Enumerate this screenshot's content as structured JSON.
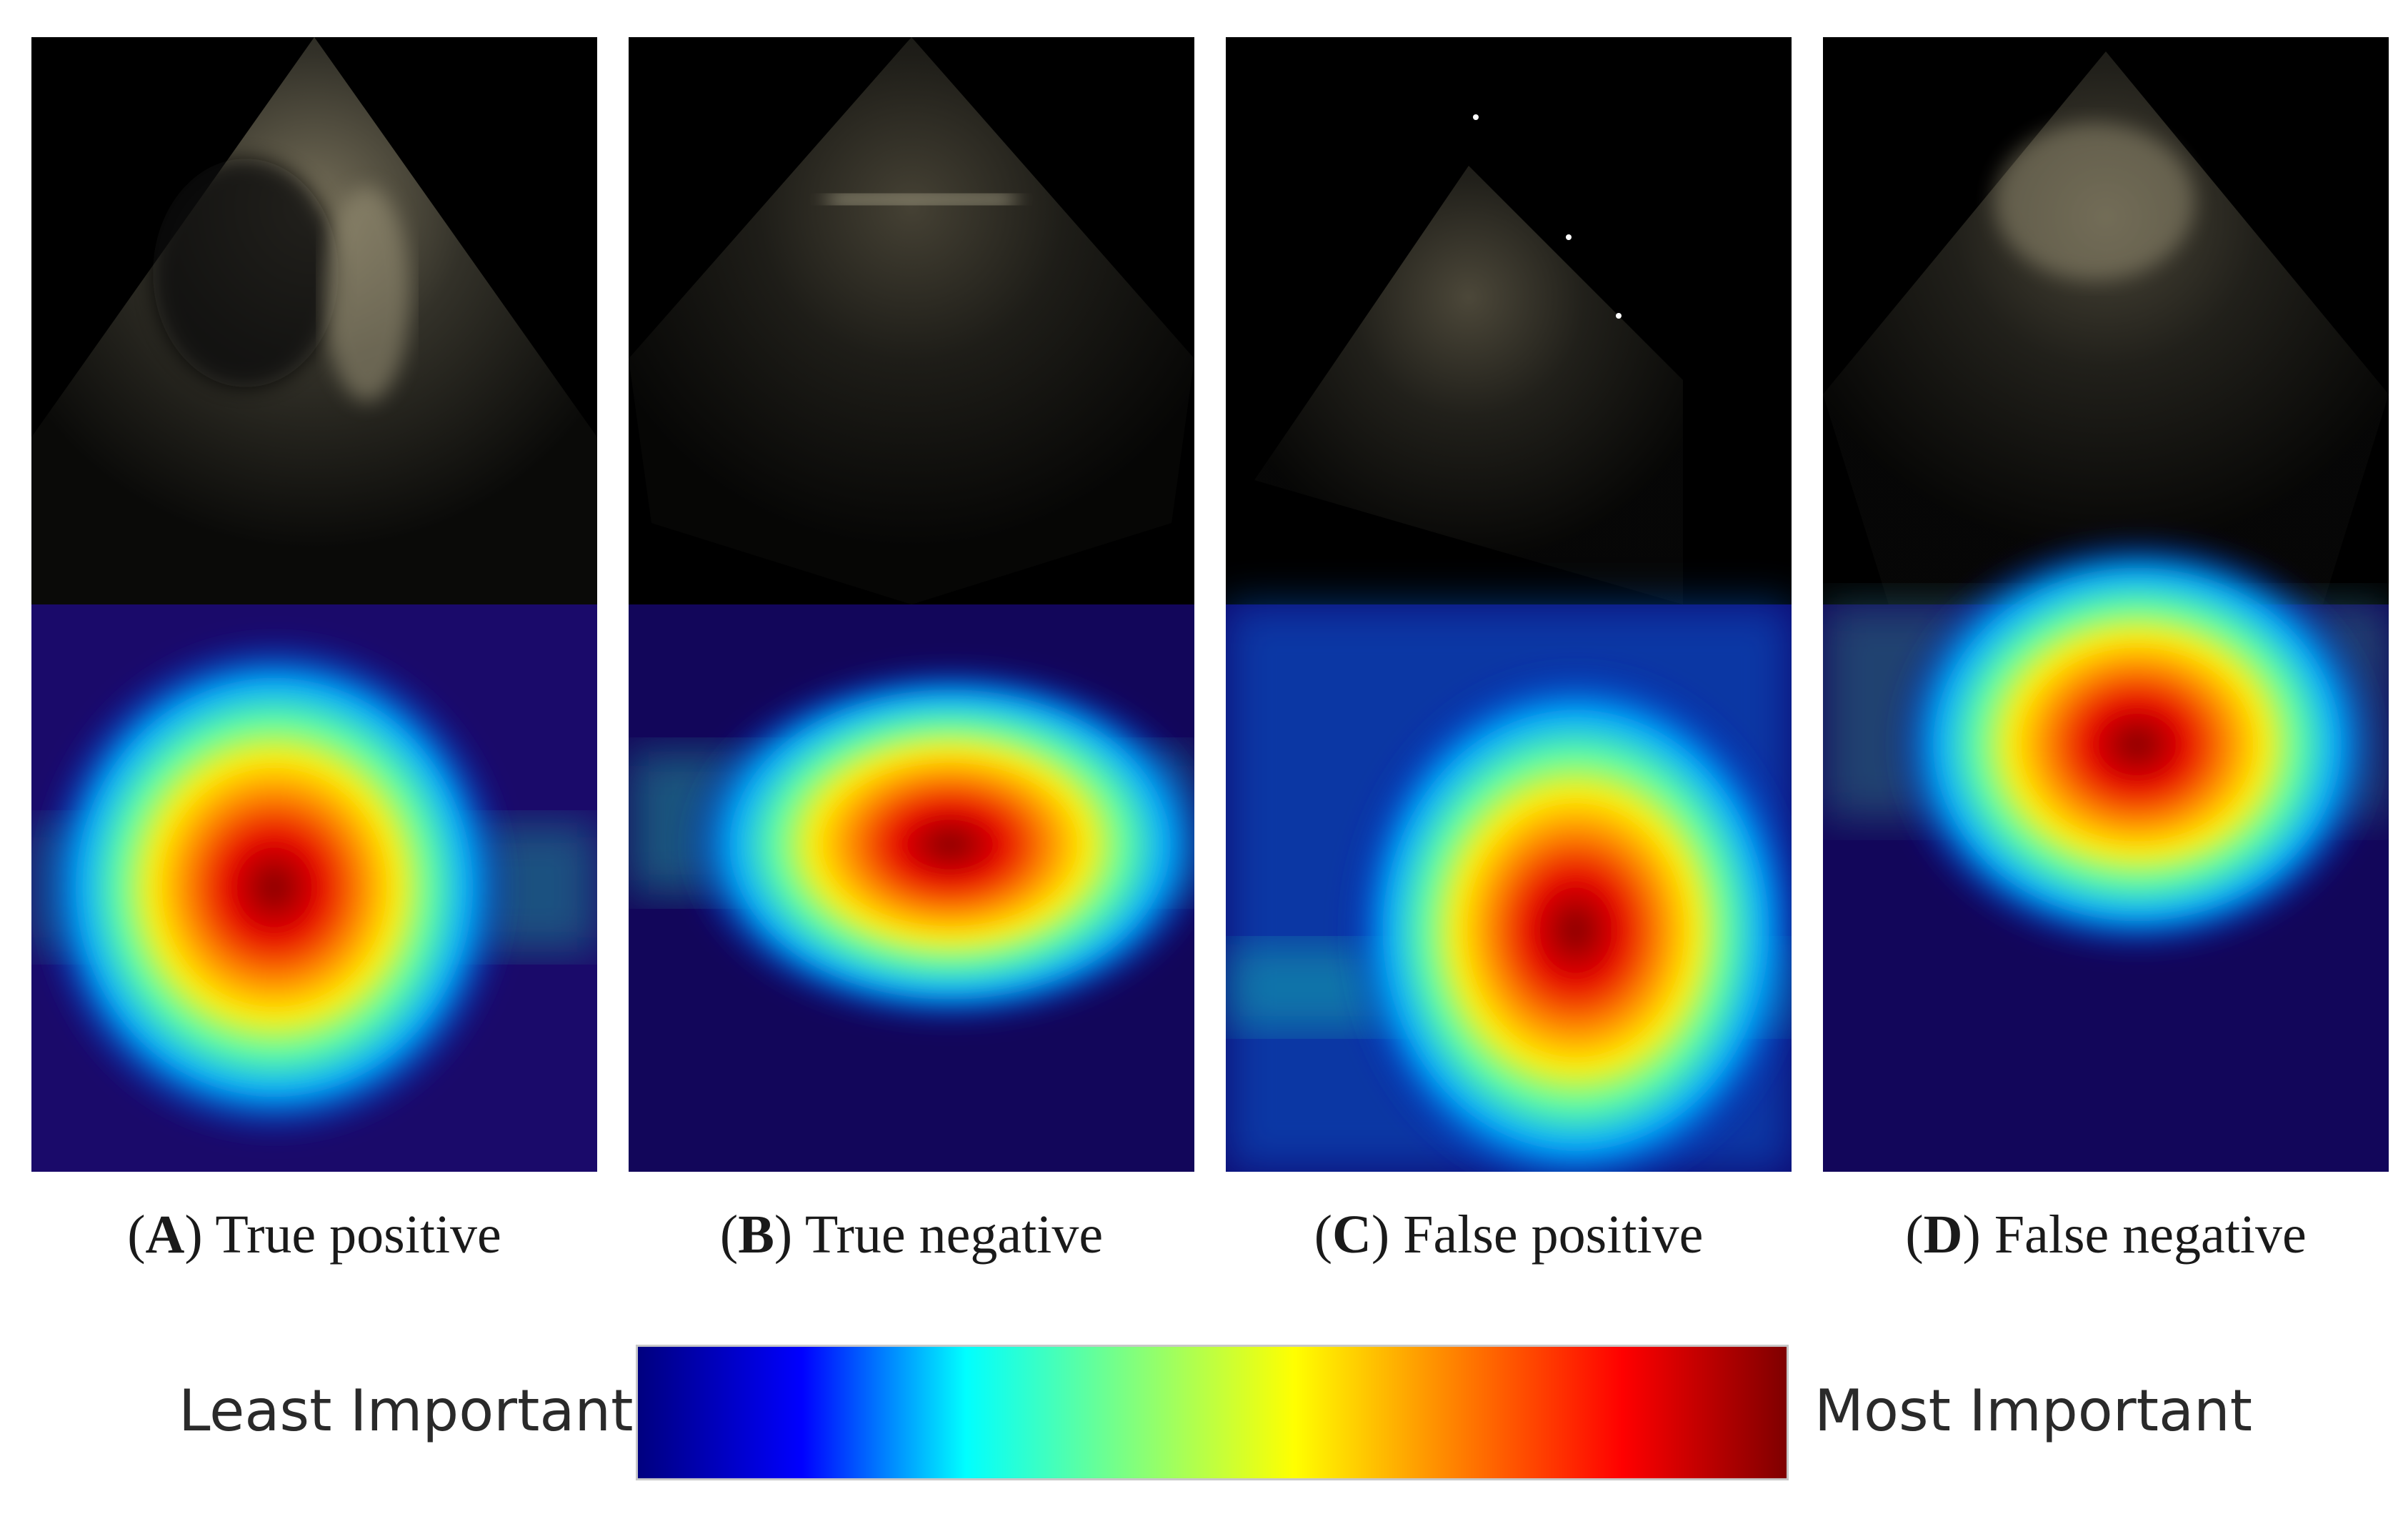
{
  "panels": [
    {
      "letter": "A",
      "caption": "True positive"
    },
    {
      "letter": "B",
      "caption": "True negative"
    },
    {
      "letter": "C",
      "caption": "False positive"
    },
    {
      "letter": "D",
      "caption": "False negative"
    }
  ],
  "colorbar": {
    "left_label": "Least Important",
    "right_label": "Most Important",
    "stops": [
      "#00007f",
      "#0000ff",
      "#00ffff",
      "#7fff7f",
      "#ffff00",
      "#ff7f00",
      "#ff0000",
      "#7f0000"
    ]
  }
}
